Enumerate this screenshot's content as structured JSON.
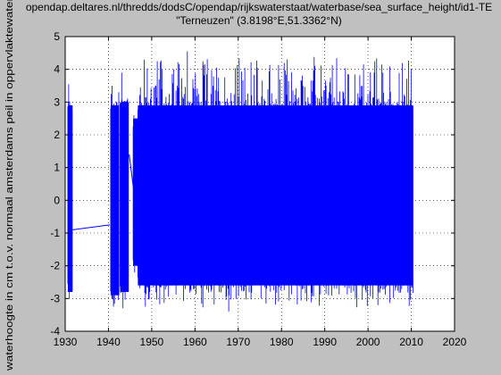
{
  "chart_data": {
    "type": "line",
    "title_line1": "opendap.deltares.nl/thredds/dodsC/opendap/rijkswaterstaat/waterbase/sea_surface_height/id1-TE",
    "title_line2": "\"Terneuzen\" (3.8198°E,51.3362°N)",
    "xlabel": "",
    "ylabel": "waterhoogte in cm t.o.v. normaal amsterdams peil in oppervlaktewater",
    "xlim": [
      1930,
      2020
    ],
    "ylim": [
      -4,
      5
    ],
    "xticks": [
      1930,
      1940,
      1950,
      1960,
      1970,
      1980,
      1990,
      2000,
      2010,
      2020
    ],
    "yticks": [
      -4,
      -3,
      -2,
      -1,
      0,
      1,
      2,
      3,
      4,
      5
    ],
    "grid": "dotted",
    "series_color": "#0000ff",
    "segments": [
      {
        "x_start": 1930.6,
        "x_end": 1931.7,
        "upper": 2.9,
        "lower": -2.8,
        "peak_max": 3.55,
        "peak_min": -3.0
      },
      {
        "x_start": 1940.5,
        "x_end": 1942.5,
        "upper": 2.9,
        "lower": -2.9,
        "peak_max": 3.5,
        "peak_min": -3.25
      },
      {
        "x_start": 1942.7,
        "x_end": 1944.7,
        "upper": 3.0,
        "lower": -2.8,
        "peak_max": 3.9,
        "peak_min": -3.3
      },
      {
        "x_start": 1945.7,
        "x_end": 1946.8,
        "upper": 2.5,
        "lower": -2.0,
        "peak_max": 2.6,
        "peak_min": -2.2
      },
      {
        "x_start": 1946.8,
        "x_end": 2010.4,
        "upper": 2.9,
        "lower": -2.6,
        "peak_max": 4.55,
        "peak_min": -3.4
      }
    ],
    "connectors": [
      {
        "x": [
          1931.7,
          1940.3
        ],
        "y": [
          -0.9,
          -0.75
        ]
      },
      {
        "x": [
          1944.8,
          1946.6
        ],
        "y": [
          1.4,
          -0.5
        ]
      }
    ]
  }
}
